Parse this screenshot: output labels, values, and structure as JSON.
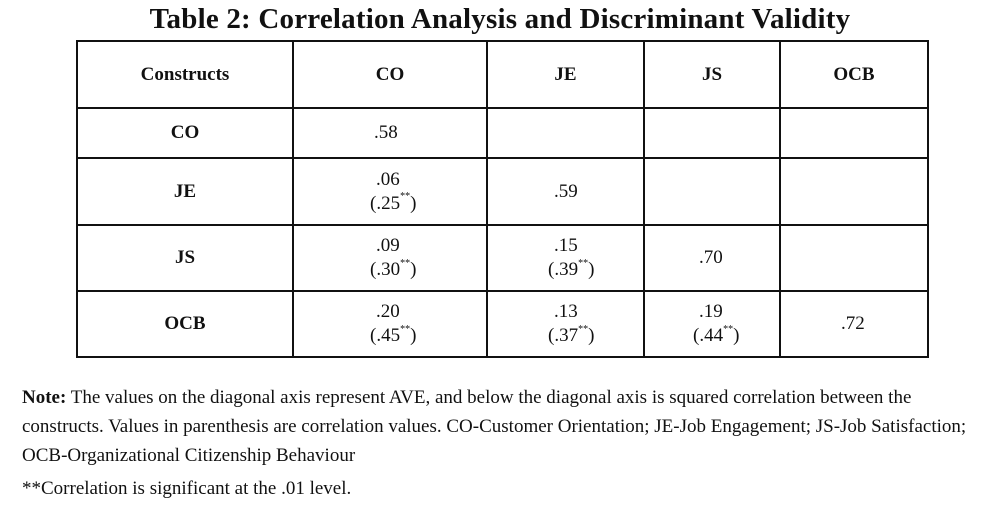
{
  "title": "Table 2:  Correlation Analysis and Discriminant Validity",
  "table": {
    "headers": [
      "Constructs",
      "CO",
      "JE",
      "JS",
      "OCB"
    ],
    "rows": [
      {
        "label": "CO",
        "cells": [
          {
            "v": ".58",
            "p": ""
          },
          {
            "v": "",
            "p": ""
          },
          {
            "v": "",
            "p": ""
          },
          {
            "v": "",
            "p": ""
          }
        ]
      },
      {
        "label": "JE",
        "cells": [
          {
            "v": ".06",
            "p": "(.25",
            "s": "**",
            "e": ")"
          },
          {
            "v": ".59",
            "p": ""
          },
          {
            "v": "",
            "p": ""
          },
          {
            "v": "",
            "p": ""
          }
        ]
      },
      {
        "label": "JS",
        "cells": [
          {
            "v": ".09",
            "p": "(.30",
            "s": "**",
            "e": ")"
          },
          {
            "v": ".15",
            "p": "(.39",
            "s": "**",
            "e": ")"
          },
          {
            "v": ".70",
            "p": ""
          },
          {
            "v": "",
            "p": ""
          }
        ]
      },
      {
        "label": "OCB",
        "cells": [
          {
            "v": ".20",
            "p": "(.45",
            "s": "**",
            "e": ")"
          },
          {
            "v": ".13",
            "p": "(.37",
            "s": "**",
            "e": ")"
          },
          {
            "v": ".19",
            "p": "(.44",
            "s": "**",
            "e": ")"
          },
          {
            "v": ".72",
            "p": ""
          }
        ]
      }
    ]
  },
  "note": {
    "label": "Note:",
    "text": " The values on the diagonal axis represent AVE, and below the diagonal axis is squared correlation between the constructs. Values in parenthesis are correlation values. CO-Customer Orientation; JE-Job Engagement; JS-Job Satisfaction; OCB-Organizational Citizenship Behaviour"
  },
  "footnote": "**Correlation is significant at the .01 level."
}
